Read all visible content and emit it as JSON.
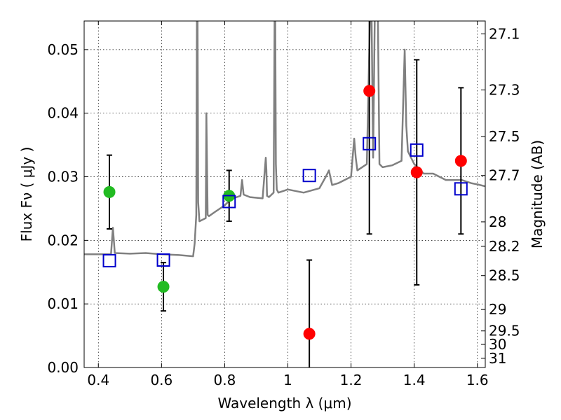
{
  "chart_data": {
    "type": "scatter",
    "xlabel": "Wavelength  λ (μm)",
    "ylabel": "Flux  Fν  ( μJy )",
    "y2label": "Magnitude (AB)",
    "xlim": [
      0.355,
      1.625
    ],
    "ylim": [
      0.0,
      0.0545
    ],
    "grid": true,
    "x_ticks": [
      0.4,
      0.6,
      0.8,
      1.0,
      1.2,
      1.4,
      1.6
    ],
    "x_tick_labels": [
      "0.4",
      "0.6",
      "0.8",
      "1",
      "1.2",
      "1.4",
      "1.6"
    ],
    "y_ticks": [
      0.0,
      0.01,
      0.02,
      0.03,
      0.04,
      0.05
    ],
    "y_tick_labels": [
      "0.00",
      "0.01",
      "0.02",
      "0.03",
      "0.04",
      "0.05"
    ],
    "mag_ticks": [
      {
        "value": 27.1,
        "label": "27.1"
      },
      {
        "value": 27.3,
        "label": "27.3"
      },
      {
        "value": 27.5,
        "label": "27.5"
      },
      {
        "value": 27.7,
        "label": "27.7"
      },
      {
        "value": 28.0,
        "label": "28"
      },
      {
        "value": 28.2,
        "label": "28.2"
      },
      {
        "value": 28.5,
        "label": "28.5"
      },
      {
        "value": 29.0,
        "label": "29"
      },
      {
        "value": 29.5,
        "label": "29.5"
      },
      {
        "value": 30.0,
        "label": "30"
      },
      {
        "value": 31.0,
        "label": "31"
      }
    ],
    "colors": {
      "model_spectrum": "#808080",
      "model_bands": "#0000cc",
      "detections": "#22bb22",
      "other_points": "#ff0000",
      "errorbar": "#000000"
    },
    "series": [
      {
        "marker": "circle",
        "color": "#22bb22",
        "points": [
          {
            "x": 0.435,
            "y": 0.0276,
            "yerr": 0.0058
          },
          {
            "x": 0.606,
            "y": 0.0127,
            "yerr": 0.0038
          },
          {
            "x": 0.814,
            "y": 0.027,
            "yerr": 0.004
          }
        ]
      },
      {
        "marker": "circle",
        "color": "#ff0000",
        "points": [
          {
            "x": 1.068,
            "y": 0.0053,
            "yerr": 0.0116
          },
          {
            "x": 1.258,
            "y": 0.0435,
            "yerr": 0.0225
          },
          {
            "x": 1.408,
            "y": 0.0307,
            "yerr": 0.0177
          },
          {
            "x": 1.548,
            "y": 0.0325,
            "yerr": 0.0115
          }
        ]
      },
      {
        "marker": "square",
        "color": "#0000cc",
        "points": [
          {
            "x": 0.435,
            "y": 0.0168
          },
          {
            "x": 0.606,
            "y": 0.0169
          },
          {
            "x": 0.814,
            "y": 0.0261
          },
          {
            "x": 1.068,
            "y": 0.0302
          },
          {
            "x": 1.258,
            "y": 0.0352
          },
          {
            "x": 1.408,
            "y": 0.0342
          },
          {
            "x": 1.548,
            "y": 0.0281
          }
        ]
      },
      {
        "line": "spectrum",
        "color": "#808080",
        "x": [
          0.355,
          0.4,
          0.44,
          0.446,
          0.452,
          0.5,
          0.55,
          0.6,
          0.65,
          0.7,
          0.705,
          0.71,
          0.712,
          0.714,
          0.716,
          0.72,
          0.74,
          0.742,
          0.744,
          0.746,
          0.75,
          0.77,
          0.8,
          0.82,
          0.85,
          0.855,
          0.86,
          0.88,
          0.92,
          0.93,
          0.932,
          0.934,
          0.94,
          0.955,
          0.958,
          0.96,
          0.962,
          0.965,
          0.97,
          1.0,
          1.05,
          1.1,
          1.12,
          1.13,
          1.14,
          1.16,
          1.2,
          1.21,
          1.215,
          1.22,
          1.25,
          1.26,
          1.265,
          1.27,
          1.275,
          1.28,
          1.285,
          1.29,
          1.3,
          1.33,
          1.36,
          1.37,
          1.375,
          1.38,
          1.39,
          1.4,
          1.41,
          1.43,
          1.46,
          1.5,
          1.55,
          1.58,
          1.6,
          1.625
        ],
        "y": [
          0.0178,
          0.0178,
          0.0178,
          0.022,
          0.018,
          0.0179,
          0.018,
          0.0178,
          0.0177,
          0.0175,
          0.0195,
          0.024,
          0.055,
          0.055,
          0.026,
          0.023,
          0.0235,
          0.04,
          0.032,
          0.024,
          0.0238,
          0.0245,
          0.0255,
          0.0265,
          0.027,
          0.0295,
          0.0272,
          0.0268,
          0.0266,
          0.033,
          0.031,
          0.027,
          0.0268,
          0.0275,
          0.055,
          0.055,
          0.032,
          0.028,
          0.0275,
          0.028,
          0.0275,
          0.0282,
          0.03,
          0.031,
          0.0287,
          0.029,
          0.03,
          0.036,
          0.033,
          0.031,
          0.032,
          0.055,
          0.055,
          0.033,
          0.055,
          0.055,
          0.055,
          0.032,
          0.0315,
          0.0318,
          0.0325,
          0.05,
          0.038,
          0.034,
          0.033,
          0.032,
          0.0315,
          0.0305,
          0.0305,
          0.0295,
          0.0295,
          0.029,
          0.0288,
          0.0285
        ]
      }
    ]
  }
}
